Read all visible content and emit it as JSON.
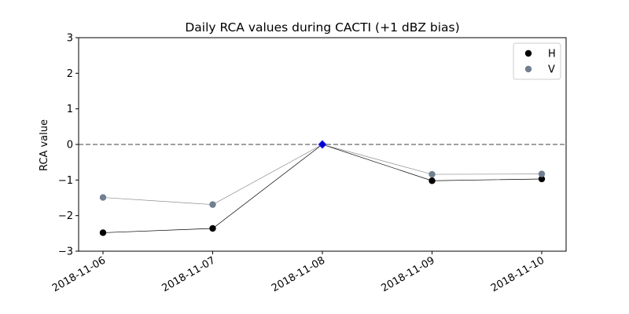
{
  "chart_data": {
    "type": "line",
    "title": "Daily RCA values during CACTI (+1 dBZ bias)",
    "xlabel": "",
    "ylabel": "RCA value",
    "categories": [
      "2018-11-06",
      "2018-11-07",
      "2018-11-08",
      "2018-11-09",
      "2018-11-10"
    ],
    "yticks": [
      "−3",
      "−2",
      "−1",
      "0",
      "1",
      "2",
      "3"
    ],
    "ytick_values": [
      -3,
      -2,
      -1,
      0,
      1,
      2,
      3
    ],
    "ylim": [
      -3,
      3
    ],
    "reference_line": {
      "y": 0,
      "style": "dashed",
      "color": "#808080"
    },
    "series": [
      {
        "name": "H",
        "values": [
          -2.48,
          -2.36,
          0.0,
          -1.02,
          -0.97
        ],
        "color": "#000000",
        "line_color": "#000000"
      },
      {
        "name": "V",
        "values": [
          -1.49,
          -1.69,
          0.0,
          -0.84,
          -0.83
        ],
        "color": "#708090",
        "line_color": "#8c8c8c"
      }
    ],
    "highlight_point": {
      "category": "2018-11-08",
      "value": 0.0,
      "marker": "diamond",
      "color": "#0000cc"
    },
    "legend": {
      "position": "top-right",
      "entries": [
        "H",
        "V"
      ]
    },
    "grid": false
  }
}
